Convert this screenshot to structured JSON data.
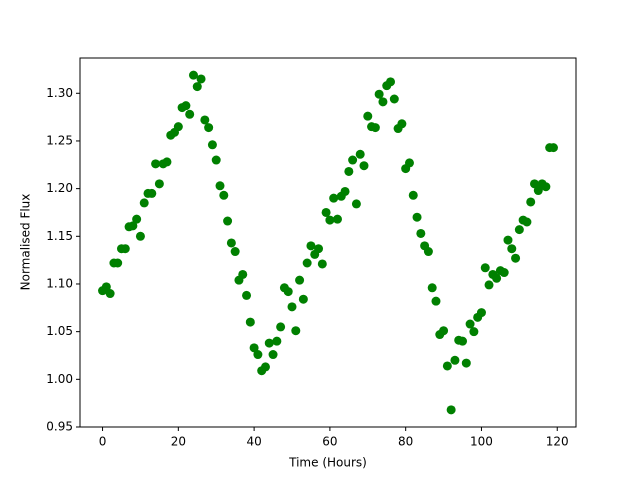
{
  "chart_data": {
    "type": "scatter",
    "x_label": "Time (Hours)",
    "y_label": "Normalised Flux",
    "color": "#008000",
    "xlim": [
      -5.95,
      124.95
    ],
    "ylim": [
      0.95,
      1.337
    ],
    "xticks": [
      0,
      20,
      40,
      60,
      80,
      100,
      120
    ],
    "yticks": [
      0.95,
      {
        "value": 1.0,
        "label": "1.00"
      },
      1.05,
      {
        "value": 1.1,
        "label": "1.10"
      },
      1.15,
      {
        "value": 1.2,
        "label": "1.20"
      },
      1.25,
      {
        "value": 1.3,
        "label": "1.30"
      }
    ],
    "x": [
      0,
      1,
      2,
      3,
      4,
      5,
      6,
      7,
      8,
      9,
      10,
      11,
      12,
      13,
      14,
      15,
      16,
      17,
      18,
      19,
      20,
      21,
      22,
      23,
      24,
      25,
      26,
      27,
      28,
      29,
      30,
      31,
      32,
      33,
      34,
      35,
      36,
      37,
      38,
      39,
      40,
      41,
      42,
      43,
      44,
      45,
      46,
      47,
      48,
      49,
      50,
      51,
      52,
      53,
      54,
      55,
      56,
      57,
      58,
      59,
      60,
      61,
      62,
      63,
      64,
      65,
      66,
      67,
      68,
      69,
      70,
      71,
      72,
      73,
      74,
      75,
      76,
      77,
      78,
      79,
      80,
      81,
      82,
      83,
      84,
      85,
      86,
      87,
      88,
      89,
      90,
      91,
      92,
      93,
      94,
      95,
      96,
      97,
      98,
      99,
      100,
      101,
      102,
      103,
      104,
      105,
      106,
      107,
      108,
      109,
      110,
      111,
      112,
      113,
      114,
      115,
      116,
      117,
      118,
      119
    ],
    "values": [
      1.093,
      1.097,
      1.09,
      1.122,
      1.122,
      1.137,
      1.137,
      1.16,
      1.161,
      1.168,
      1.15,
      1.185,
      1.195,
      1.195,
      1.226,
      1.205,
      1.226,
      1.228,
      1.256,
      1.259,
      1.265,
      1.285,
      1.287,
      1.278,
      1.319,
      1.307,
      1.315,
      1.272,
      1.264,
      1.246,
      1.23,
      1.203,
      1.193,
      1.166,
      1.143,
      1.134,
      1.104,
      1.11,
      1.088,
      1.06,
      1.033,
      1.026,
      1.009,
      1.013,
      1.038,
      1.026,
      1.04,
      1.055,
      1.096,
      1.092,
      1.076,
      1.051,
      1.104,
      1.084,
      1.122,
      1.14,
      1.131,
      1.137,
      1.121,
      1.175,
      1.167,
      1.19,
      1.168,
      1.192,
      1.197,
      1.218,
      1.23,
      1.184,
      1.236,
      1.224,
      1.276,
      1.265,
      1.264,
      1.299,
      1.291,
      1.308,
      1.312,
      1.294,
      1.263,
      1.268,
      1.221,
      1.227,
      1.193,
      1.17,
      1.153,
      1.14,
      1.134,
      1.096,
      1.082,
      1.047,
      1.051,
      1.014,
      0.968,
      1.02,
      1.041,
      1.04,
      1.017,
      1.058,
      1.05,
      1.065,
      1.07,
      1.117,
      1.099,
      1.11,
      1.106,
      1.114,
      1.112,
      1.146,
      1.137,
      1.127,
      1.157,
      1.167,
      1.165,
      1.186,
      1.205,
      1.198,
      1.205,
      1.202,
      1.243,
      1.243
    ]
  }
}
